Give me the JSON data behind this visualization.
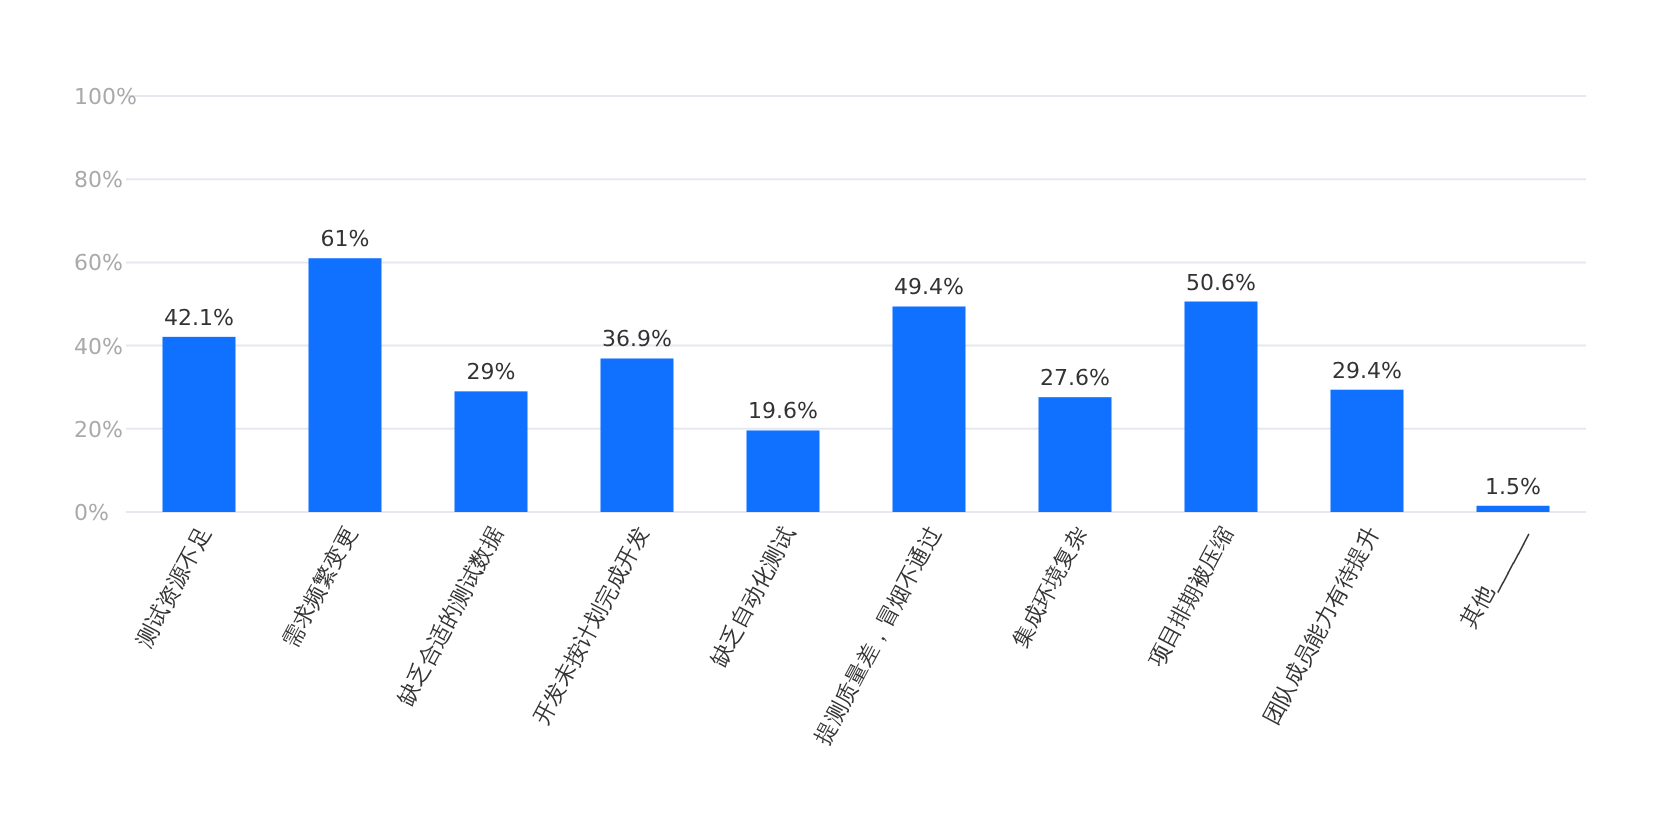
{
  "chart_data": {
    "type": "bar",
    "categories": [
      "测试资源不足",
      "需求频繁变更",
      "缺乏合适的测试数据",
      "开发未按计划完成开发",
      "缺乏自动化测试",
      "提测质量差，冒烟不通过",
      "集成环境复杂",
      "项目排期被压缩",
      "团队成员能力有待提升",
      "其他______"
    ],
    "values": [
      42.1,
      61,
      29,
      36.9,
      19.6,
      49.4,
      27.6,
      50.6,
      29.4,
      1.5
    ],
    "value_labels": [
      "42.1%",
      "61%",
      "29%",
      "36.9%",
      "19.6%",
      "49.4%",
      "27.6%",
      "50.6%",
      "29.4%",
      "1.5%"
    ],
    "color": "#1070ff",
    "ylim": [
      0,
      100
    ],
    "yticks": [
      {
        "value": 0,
        "label": "0%"
      },
      {
        "value": 20,
        "label": "20%"
      },
      {
        "value": 40,
        "label": "40%"
      },
      {
        "value": 60,
        "label": "60%"
      },
      {
        "value": 80,
        "label": "80%"
      },
      {
        "value": 100,
        "label": "100%"
      }
    ],
    "grid": "y"
  }
}
